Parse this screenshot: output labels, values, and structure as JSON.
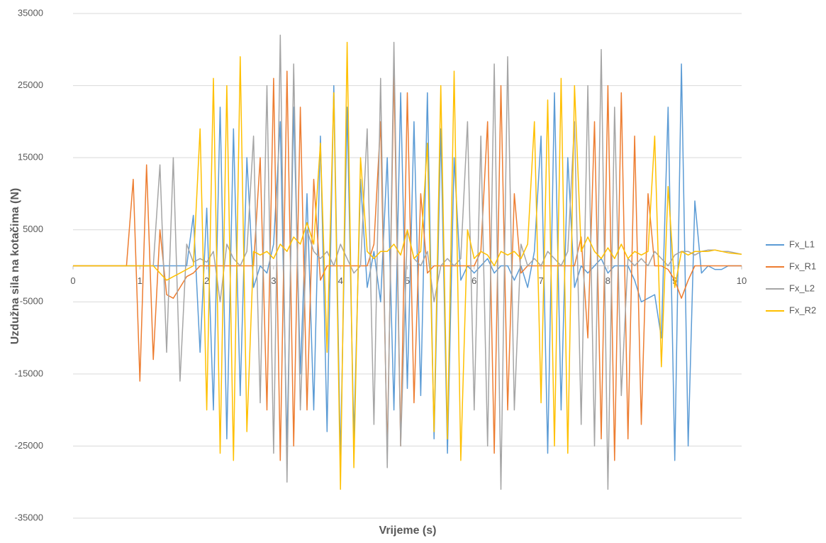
{
  "chart_data": {
    "type": "line",
    "x_label": "Vrijeme (s)",
    "y_label": "Uzdužna sila na kotačima (N)",
    "xlim": [
      0,
      10
    ],
    "xticks": [
      0,
      1,
      2,
      3,
      4,
      5,
      6,
      7,
      8,
      9,
      10
    ],
    "ylim": [
      -35000,
      35000
    ],
    "yticks": [
      35000,
      25000,
      15000,
      5000,
      -5000,
      -15000,
      -25000,
      -35000
    ],
    "grid": true,
    "legend": "right",
    "x": [
      0,
      0.1,
      0.2,
      0.3,
      0.4,
      0.5,
      0.6,
      0.7,
      0.8,
      0.9,
      1,
      1.1,
      1.2,
      1.3,
      1.4,
      1.5,
      1.6,
      1.7,
      1.8,
      1.9,
      2,
      2.1,
      2.2,
      2.3,
      2.4,
      2.5,
      2.6,
      2.7,
      2.8,
      2.9,
      3,
      3.1,
      3.2,
      3.3,
      3.4,
      3.5,
      3.6,
      3.7,
      3.8,
      3.9,
      4,
      4.1,
      4.2,
      4.3,
      4.4,
      4.5,
      4.6,
      4.7,
      4.8,
      4.9,
      5,
      5.1,
      5.2,
      5.3,
      5.4,
      5.5,
      5.6,
      5.7,
      5.8,
      5.9,
      6,
      6.1,
      6.2,
      6.3,
      6.4,
      6.5,
      6.6,
      6.7,
      6.8,
      6.9,
      7,
      7.1,
      7.2,
      7.3,
      7.4,
      7.5,
      7.6,
      7.7,
      7.8,
      7.9,
      8,
      8.1,
      8.2,
      8.3,
      8.4,
      8.5,
      8.6,
      8.7,
      8.8,
      8.9,
      9,
      9.1,
      9.2,
      9.3,
      9.4,
      9.5,
      9.6,
      9.7,
      9.8,
      9.9,
      10
    ],
    "series": [
      {
        "name": "Fx_L1",
        "color": "#5b9bd5",
        "values": [
          0,
          0,
          0,
          0,
          0,
          0,
          0,
          0,
          0,
          0,
          0,
          0,
          0,
          0,
          0,
          0,
          0,
          0,
          7000,
          -12000,
          8000,
          -20000,
          22000,
          -24000,
          19000,
          -18000,
          15000,
          -3000,
          0,
          -1000,
          3000,
          20000,
          -25000,
          22000,
          -15000,
          10000,
          -20000,
          18000,
          -23000,
          25000,
          -27000,
          22000,
          -24000,
          12000,
          -3000,
          2000,
          -5000,
          15000,
          -20000,
          24000,
          -17000,
          20000,
          -18000,
          24000,
          -24000,
          19000,
          -26000,
          15000,
          -2000,
          0,
          -1000,
          0,
          1000,
          -1000,
          0,
          0,
          -2000,
          0,
          -3000,
          2000,
          18000,
          -26000,
          24000,
          -20000,
          15000,
          -3000,
          0,
          -1000,
          0,
          1000,
          -1000,
          0,
          0,
          0,
          -2000,
          -5000,
          -4500,
          -4000,
          -10000,
          22000,
          -27000,
          28000,
          -25000,
          9000,
          -1000,
          0,
          -500,
          -500,
          0,
          0,
          0
        ]
      },
      {
        "name": "Fx_R1",
        "color": "#ed7d31",
        "values": [
          0,
          0,
          0,
          0,
          0,
          0,
          0,
          0,
          0,
          12000,
          -16000,
          14000,
          -13000,
          5000,
          -4000,
          -4500,
          -3000,
          -1500,
          -1000,
          0,
          0,
          0,
          0,
          0,
          0,
          0,
          0,
          0,
          15000,
          -20000,
          26000,
          -27000,
          27000,
          -25000,
          22000,
          -20000,
          12000,
          -2000,
          0,
          0,
          0,
          0,
          0,
          0,
          0,
          3000,
          20000,
          -26000,
          27000,
          -25000,
          24000,
          -19000,
          10000,
          -1000,
          0,
          0,
          0,
          0,
          0,
          0,
          0,
          2000,
          20000,
          -26000,
          25000,
          -20000,
          10000,
          -1000,
          0,
          0,
          0,
          0,
          0,
          0,
          0,
          0,
          4000,
          -10000,
          20000,
          -24000,
          25000,
          -27000,
          24000,
          -24000,
          18000,
          -22000,
          10000,
          0,
          0,
          -500,
          -2000,
          -4500,
          -2000,
          0,
          0,
          0,
          0,
          0,
          0,
          0,
          0
        ]
      },
      {
        "name": "Fx_L2",
        "color": "#a5a5a5",
        "values": [
          0,
          0,
          0,
          0,
          0,
          0,
          0,
          0,
          0,
          0,
          0,
          0,
          0,
          14000,
          -12000,
          15000,
          -16000,
          3000,
          500,
          1000,
          500,
          2000,
          -5000,
          3000,
          1000,
          0,
          2000,
          18000,
          -19000,
          25000,
          -26000,
          32000,
          -30000,
          28000,
          -20000,
          5000,
          2000,
          1000,
          2000,
          0,
          3000,
          1000,
          -1000,
          0,
          19000,
          -22000,
          26000,
          -28000,
          31000,
          -25000,
          5000,
          1000,
          0,
          2000,
          -5000,
          0,
          1000,
          0,
          1000,
          20000,
          -20000,
          18000,
          -25000,
          28000,
          -31000,
          29000,
          -20000,
          3000,
          0,
          1000,
          0,
          2000,
          1000,
          0,
          2000,
          20000,
          -22000,
          25000,
          -25000,
          30000,
          -31000,
          22000,
          -18000,
          1000,
          0,
          1000,
          0,
          2000,
          1000,
          0,
          1500,
          2000,
          2000,
          1500,
          2000,
          2200,
          2200,
          2000,
          2000,
          1800,
          1600
        ]
      },
      {
        "name": "Fx_R2",
        "color": "#ffc000",
        "values": [
          0,
          0,
          0,
          0,
          0,
          0,
          0,
          0,
          0,
          0,
          0,
          0,
          0,
          -1000,
          -2000,
          -1500,
          -1000,
          -500,
          0,
          19000,
          -20000,
          26000,
          -26000,
          25000,
          -27000,
          29000,
          -23000,
          2000,
          1500,
          2000,
          1000,
          3000,
          2000,
          4000,
          3000,
          6000,
          3000,
          17000,
          -12000,
          24000,
          -31000,
          31000,
          -28000,
          15000,
          2000,
          1000,
          2000,
          2000,
          3000,
          1500,
          5000,
          1000,
          2000,
          17000,
          -23000,
          25000,
          -24000,
          27000,
          -27000,
          5000,
          1000,
          2000,
          1500,
          0,
          2000,
          1500,
          2000,
          1000,
          3000,
          20000,
          -19000,
          23000,
          -25000,
          26000,
          -26000,
          25000,
          2000,
          4000,
          2000,
          1000,
          2500,
          1000,
          3000,
          1000,
          2000,
          1500,
          2000,
          18000,
          -14000,
          11000,
          -3000,
          2000,
          1500,
          2000,
          2000,
          2000,
          2200,
          2000,
          1800,
          1700,
          1600
        ]
      }
    ]
  }
}
